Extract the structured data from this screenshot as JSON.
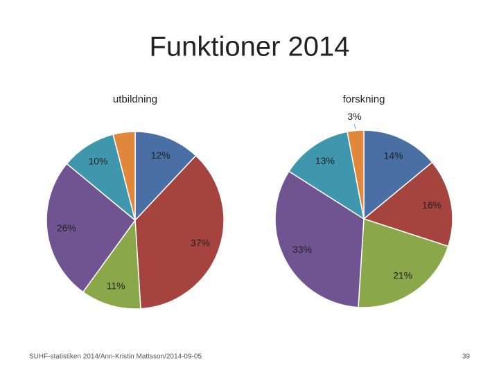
{
  "title": "Funktioner 2014",
  "footer": "SUHF-statistiken 2014/Ann-Kristin Mattsson/2014-09-05",
  "page_number": "39",
  "chart_data": [
    {
      "type": "pie",
      "title": "utbildning",
      "values": [
        12,
        37,
        11,
        26,
        10,
        4
      ],
      "value_labels": [
        "12%",
        "37%",
        "11%",
        "26%",
        "10%",
        null
      ],
      "colors": [
        "#4a6fa5",
        "#a5433f",
        "#8aa84a",
        "#6f5491",
        "#3f97ae",
        "#e0873c"
      ]
    },
    {
      "type": "pie",
      "title": "forskning",
      "values": [
        14,
        16,
        21,
        33,
        13,
        3
      ],
      "value_labels": [
        "14%",
        "16%",
        "21%",
        "33%",
        "13%",
        "3%"
      ],
      "colors": [
        "#4a6fa5",
        "#a5433f",
        "#8aa84a",
        "#6f5491",
        "#3f97ae",
        "#e0873c"
      ]
    }
  ]
}
